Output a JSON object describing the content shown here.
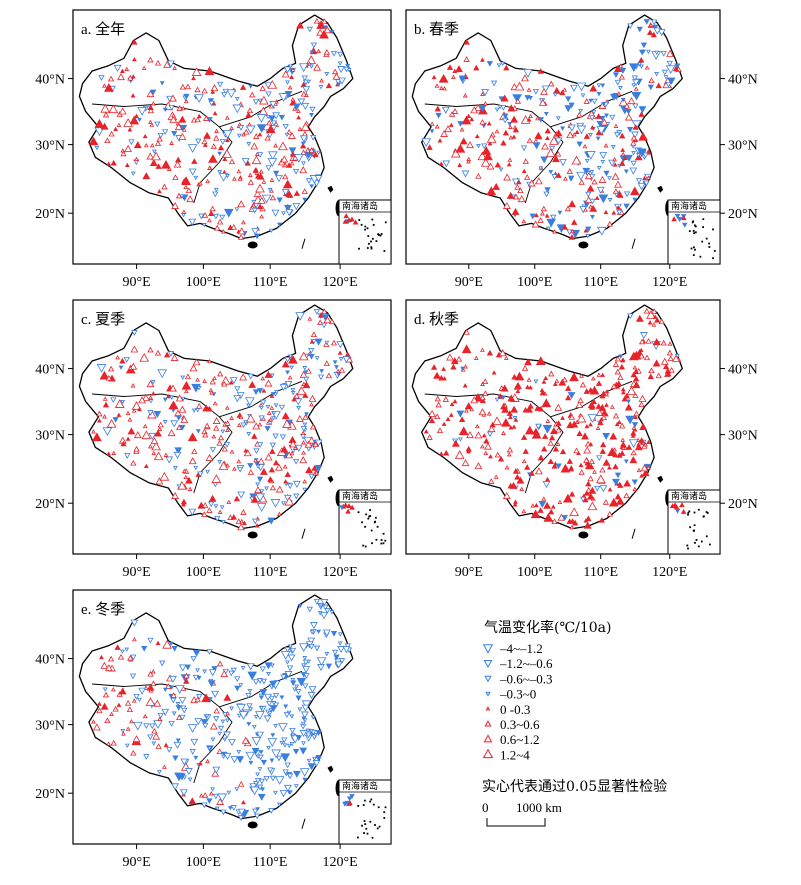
{
  "colors": {
    "warm": "#e8232a",
    "cold": "#3a7fe0"
  },
  "axis_labels": {
    "lon": [
      "90°E",
      "100°E",
      "110°E",
      "120°E"
    ],
    "lat": [
      "40°N",
      "30°N",
      "20°N"
    ]
  },
  "inset_title": "南海诸岛",
  "panels": [
    {
      "id": "a",
      "title": "a. 全年",
      "lat_side": "left",
      "warm_fraction": 0.62,
      "sig_fraction": 0.3,
      "cold_bias_east": 0.55
    },
    {
      "id": "b",
      "title": "b. 春季",
      "lat_side": "right",
      "warm_fraction": 0.52,
      "sig_fraction": 0.4,
      "cold_bias_east": 0.75
    },
    {
      "id": "c",
      "title": "c. 夏季",
      "lat_side": "left",
      "warm_fraction": 0.62,
      "sig_fraction": 0.25,
      "cold_bias_east": 0.6
    },
    {
      "id": "d",
      "title": "d. 秋季",
      "lat_side": "right",
      "warm_fraction": 0.9,
      "sig_fraction": 0.55,
      "cold_bias_east": 0.2
    },
    {
      "id": "e",
      "title": "e. 冬季",
      "lat_side": "left",
      "warm_fraction": 0.18,
      "sig_fraction": 0.2,
      "cold_bias_east": 0.95
    }
  ],
  "legend": {
    "title": "气温变化率(℃/10a)",
    "classes": [
      {
        "label": "–4~–1.2",
        "dir": "down",
        "size": 4.6
      },
      {
        "label": "–1.2~–0.6",
        "dir": "down",
        "size": 3.8
      },
      {
        "label": "–0.6~–0.3",
        "dir": "down",
        "size": 3.0
      },
      {
        "label": "–0.3~0",
        "dir": "down",
        "size": 2.0
      },
      {
        "label": "0 -0.3",
        "dir": "up",
        "size": 1.6
      },
      {
        "label": "0.3~0.6",
        "dir": "up",
        "size": 2.8
      },
      {
        "label": "0.6~1.2",
        "dir": "up",
        "size": 3.8
      },
      {
        "label": "1.2~4",
        "dir": "up",
        "size": 4.6
      }
    ],
    "note": "实心代表通过0.05显著性检验",
    "scale_zero": "0",
    "scale_label": "1000 km"
  }
}
